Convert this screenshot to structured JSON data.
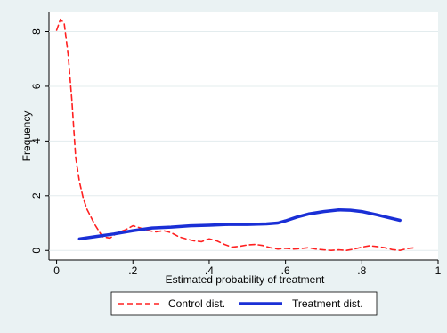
{
  "chart_data": {
    "type": "line",
    "title": "",
    "xlabel": "Estimated probability of treatment",
    "ylabel": "Frequency",
    "xlim": [
      -0.02,
      1.0
    ],
    "ylim": [
      -0.35,
      8.7
    ],
    "xticks": [
      {
        "value": 0,
        "label": "0"
      },
      {
        "value": 0.2,
        "label": ".2"
      },
      {
        "value": 0.4,
        "label": ".4"
      },
      {
        "value": 0.6,
        "label": ".6"
      },
      {
        "value": 0.8,
        "label": ".8"
      },
      {
        "value": 1.0,
        "label": "1"
      }
    ],
    "yticks": [
      {
        "value": 0,
        "label": "0"
      },
      {
        "value": 2,
        "label": "2"
      },
      {
        "value": 4,
        "label": "4"
      },
      {
        "value": 6,
        "label": "6"
      },
      {
        "value": 8,
        "label": "8"
      }
    ],
    "grid": true,
    "legend_position": "bottom",
    "series": [
      {
        "name": "Control dist.",
        "color": "#ff2020",
        "style": "dashed",
        "x": [
          0.0,
          0.01,
          0.02,
          0.03,
          0.04,
          0.05,
          0.06,
          0.07,
          0.08,
          0.1,
          0.12,
          0.14,
          0.16,
          0.18,
          0.2,
          0.22,
          0.24,
          0.26,
          0.28,
          0.3,
          0.32,
          0.34,
          0.36,
          0.38,
          0.4,
          0.42,
          0.44,
          0.46,
          0.48,
          0.5,
          0.52,
          0.54,
          0.56,
          0.58,
          0.6,
          0.62,
          0.64,
          0.66,
          0.68,
          0.7,
          0.72,
          0.74,
          0.76,
          0.78,
          0.8,
          0.82,
          0.84,
          0.86,
          0.88,
          0.9,
          0.92,
          0.94
        ],
        "y": [
          8.05,
          8.45,
          8.3,
          7.2,
          5.5,
          3.4,
          2.5,
          1.9,
          1.5,
          0.95,
          0.5,
          0.45,
          0.65,
          0.75,
          0.9,
          0.82,
          0.72,
          0.68,
          0.72,
          0.65,
          0.5,
          0.42,
          0.35,
          0.32,
          0.42,
          0.35,
          0.22,
          0.12,
          0.15,
          0.2,
          0.22,
          0.18,
          0.1,
          0.05,
          0.08,
          0.05,
          0.07,
          0.1,
          0.05,
          0.02,
          0.0,
          0.02,
          0.0,
          0.05,
          0.12,
          0.17,
          0.14,
          0.1,
          0.03,
          0.0,
          0.07,
          0.1
        ]
      },
      {
        "name": "Treatment dist.",
        "color": "#1a2fd6",
        "style": "solid",
        "x": [
          0.06,
          0.1,
          0.15,
          0.2,
          0.25,
          0.3,
          0.35,
          0.4,
          0.45,
          0.5,
          0.55,
          0.58,
          0.6,
          0.63,
          0.66,
          0.7,
          0.74,
          0.77,
          0.8,
          0.84,
          0.87,
          0.9
        ],
        "y": [
          0.42,
          0.5,
          0.6,
          0.72,
          0.82,
          0.85,
          0.9,
          0.92,
          0.95,
          0.95,
          0.97,
          1.0,
          1.08,
          1.22,
          1.33,
          1.42,
          1.48,
          1.47,
          1.42,
          1.3,
          1.2,
          1.1
        ]
      }
    ]
  }
}
